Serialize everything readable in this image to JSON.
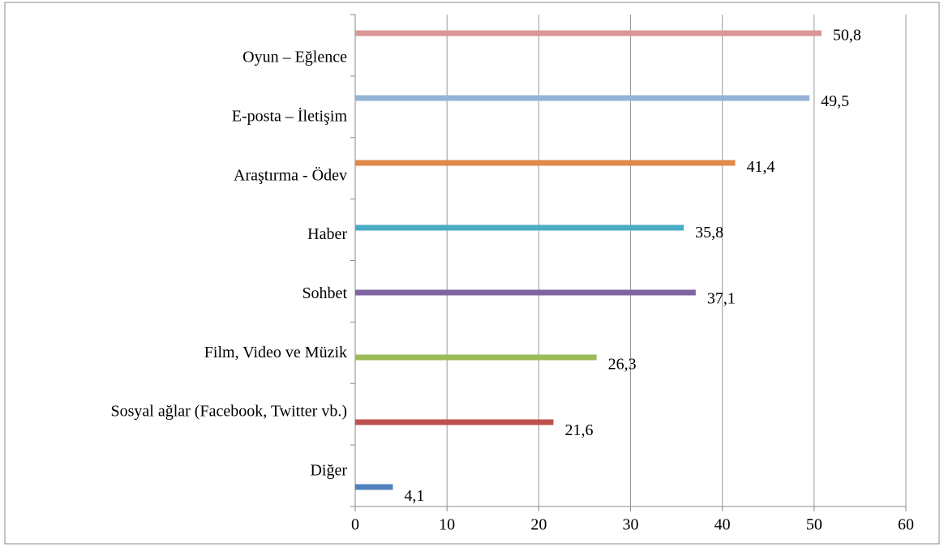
{
  "chart_data": {
    "type": "bar",
    "orientation": "horizontal",
    "categories": [
      "Oyun – Eğlence",
      "E-posta – İletişim",
      "Araştırma - Ödev",
      "Haber",
      "Sohbet",
      "Film, Video ve Müzik",
      "Sosyal ağlar (Facebook, Twitter vb.)",
      "Diğer"
    ],
    "values": [
      50.8,
      49.5,
      41.4,
      35.8,
      37.1,
      26.3,
      21.6,
      4.1
    ],
    "value_labels": [
      "50,8",
      "49,5",
      "41,4",
      "35,8",
      "37,1",
      "26,3",
      "21,6",
      "4,1"
    ],
    "colors": [
      "#d99694",
      "#95b3d7",
      "#e0894a",
      "#4bacc6",
      "#8064a2",
      "#9bbb59",
      "#c0504d",
      "#4f81bd"
    ],
    "xlim": [
      0,
      60
    ],
    "xticks": [
      0,
      10,
      20,
      30,
      40,
      50,
      60
    ],
    "grid": true
  }
}
